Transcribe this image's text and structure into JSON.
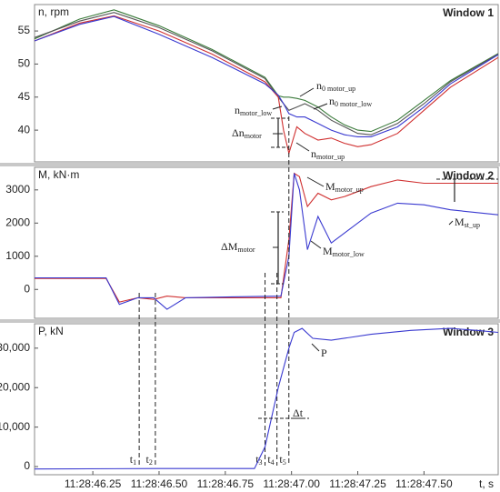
{
  "chart_data": [
    {
      "type": "line",
      "title": "Window 1",
      "y_label": "n, rpm",
      "xlim": [
        46.03,
        47.78
      ],
      "ylim": [
        35.2,
        59
      ],
      "yticks": [
        40,
        45,
        50,
        55
      ],
      "x": [
        46.03,
        46.2,
        46.33,
        46.5,
        46.7,
        46.9,
        46.95,
        46.97,
        46.99,
        47.02,
        47.05,
        47.1,
        47.15,
        47.2,
        47.25,
        47.3,
        47.4,
        47.5,
        47.6,
        47.78
      ],
      "series": [
        {
          "name": "n0 motor_up",
          "color": "#3a7a3a",
          "values": [
            53.8,
            56.8,
            58.2,
            55.8,
            52.2,
            48.0,
            45.2,
            45.0,
            45.0,
            44.8,
            44.5,
            43.5,
            42.0,
            40.8,
            40.0,
            39.8,
            41.5,
            44.5,
            47.5,
            51.6
          ]
        },
        {
          "name": "n0 motor_low",
          "color": "#555555",
          "values": [
            54,
            56.5,
            57.8,
            55.5,
            52,
            47.8,
            45.0,
            44.0,
            43.0,
            43.5,
            44.0,
            43.0,
            41.5,
            40.5,
            39.5,
            39.3,
            41.0,
            44.0,
            47.3,
            51.5
          ]
        },
        {
          "name": "nmotor_up",
          "color": "#d03030",
          "values": [
            53.5,
            56.2,
            57.3,
            55,
            51.5,
            47.3,
            45.0,
            40.0,
            36.5,
            40.5,
            39.5,
            38.5,
            38.8,
            38.0,
            37.5,
            37.8,
            39.5,
            43.0,
            46.5,
            51.0
          ]
        },
        {
          "name": "nmotor_low",
          "color": "#3a3ad0",
          "values": [
            53.5,
            56,
            57.2,
            54.5,
            51,
            47.0,
            45.3,
            44,
            42.5,
            42.0,
            42.0,
            41.0,
            40.0,
            39.3,
            39.0,
            39.0,
            40.5,
            43.5,
            47.0,
            51.4
          ]
        }
      ],
      "annotations": [
        {
          "text": "n",
          "sub": "0 motor_up"
        },
        {
          "text": "n",
          "sub": "0 motor_low"
        },
        {
          "text": "n",
          "sub": "motor_low"
        },
        {
          "text": "Δn",
          "sub": "motor"
        },
        {
          "text": "n",
          "sub": "motor_up"
        }
      ]
    },
    {
      "type": "line",
      "title": "Window 2",
      "y_label": "M, kN·m",
      "xlim": [
        46.03,
        47.78
      ],
      "ylim": [
        -870,
        3680
      ],
      "yticks": [
        0,
        1000,
        2000,
        3000
      ],
      "x": [
        46.03,
        46.3,
        46.35,
        46.42,
        46.48,
        46.53,
        46.6,
        46.8,
        46.96,
        46.99,
        47.01,
        47.03,
        47.06,
        47.1,
        47.15,
        47.2,
        47.3,
        47.4,
        47.5,
        47.6,
        47.78
      ],
      "series": [
        {
          "name": "Mmotor_up",
          "color": "#d03030",
          "values": [
            330,
            330,
            -380,
            -250,
            -300,
            -200,
            -250,
            -250,
            -250,
            1500,
            3500,
            3400,
            2500,
            2900,
            2700,
            2800,
            3100,
            3300,
            3200,
            3200,
            3200
          ]
        },
        {
          "name": "Mmotor_low",
          "color": "#3a3ad0",
          "values": [
            350,
            350,
            -450,
            -250,
            -250,
            -600,
            -250,
            -220,
            -200,
            1000,
            3500,
            3000,
            1200,
            2200,
            1400,
            1700,
            2300,
            2600,
            2550,
            2400,
            2250
          ]
        }
      ],
      "annotations": [
        {
          "text": "M",
          "sub": "motor_up"
        },
        {
          "text": "M",
          "sub": "st_up"
        },
        {
          "text": "ΔM",
          "sub": "motor"
        },
        {
          "text": "M",
          "sub": "motor_low"
        }
      ]
    },
    {
      "type": "line",
      "title": "Window 3",
      "y_label": "P, kN",
      "x_label": "t, s",
      "xlim": [
        46.03,
        47.78
      ],
      "ylim": [
        -2060,
        36180
      ],
      "yticks": [
        0,
        {
          "value": 10000,
          "label": "10,000"
        },
        {
          "value": 20000,
          "label": "20,000"
        },
        {
          "value": 30000,
          "label": "30,000"
        }
      ],
      "xticks": [
        {
          "value": 46.25,
          "label": "11:28:46.25"
        },
        {
          "value": 46.5,
          "label": "11:28:46.50"
        },
        {
          "value": 46.75,
          "label": "11:28:46.75"
        },
        {
          "value": 47.0,
          "label": "11:28:47.00"
        },
        {
          "value": 47.25,
          "label": "11:28:47.25"
        },
        {
          "value": 47.5,
          "label": "11:28:47.50"
        }
      ],
      "x": [
        46.03,
        46.5,
        46.86,
        46.9,
        46.95,
        46.99,
        47.01,
        47.04,
        47.08,
        47.15,
        47.3,
        47.45,
        47.6,
        47.7,
        47.78
      ],
      "series": [
        {
          "name": "P",
          "color": "#3a3ad0",
          "values": [
            -600,
            -500,
            -500,
            5000,
            20000,
            30000,
            34000,
            35000,
            32500,
            32000,
            33500,
            34500,
            35000,
            34500,
            34000
          ]
        }
      ],
      "annotations": [
        {
          "text": "P"
        },
        {
          "text": "Δt"
        }
      ],
      "events": [
        {
          "x": 46.425,
          "text": "t",
          "sub": "1"
        },
        {
          "x": 46.486,
          "text": "t",
          "sub": "2"
        },
        {
          "x": 46.9,
          "text": "t",
          "sub": "3"
        },
        {
          "x": 46.945,
          "text": "t",
          "sub": "4"
        },
        {
          "x": 46.99,
          "text": "t",
          "sub": "5"
        }
      ]
    }
  ]
}
